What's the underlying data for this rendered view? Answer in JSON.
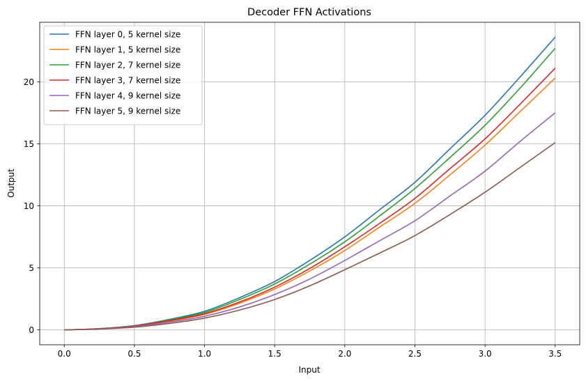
{
  "chart_data": {
    "type": "line",
    "title": "Decoder FFN Activations",
    "xlabel": "Input",
    "ylabel": "Output",
    "xlim": [
      -0.175,
      3.675
    ],
    "ylim": [
      -1.2,
      24.8
    ],
    "xticks": [
      0.0,
      0.5,
      1.0,
      1.5,
      2.0,
      2.5,
      3.0,
      3.5
    ],
    "xtick_labels": [
      "0.0",
      "0.5",
      "1.0",
      "1.5",
      "2.0",
      "2.5",
      "3.0",
      "3.5"
    ],
    "yticks": [
      0,
      5,
      10,
      15,
      20
    ],
    "ytick_labels": [
      "0",
      "5",
      "10",
      "15",
      "20"
    ],
    "grid": true,
    "legend_position": "upper-left",
    "x": [
      0.0,
      0.25,
      0.5,
      0.75,
      1.0,
      1.25,
      1.5,
      1.75,
      2.0,
      2.25,
      2.5,
      2.75,
      3.0,
      3.25,
      3.5
    ],
    "series": [
      {
        "name": "FFN layer 0, 5 kernel size",
        "color": "#1f77b4",
        "values": [
          0.0,
          0.1,
          0.35,
          0.85,
          1.5,
          2.6,
          3.9,
          5.6,
          7.5,
          9.7,
          11.9,
          14.6,
          17.3,
          20.4,
          23.6
        ]
      },
      {
        "name": "FFN layer 1, 5 kernel size",
        "color": "#ff7f0e",
        "values": [
          0.0,
          0.09,
          0.3,
          0.7,
          1.25,
          2.15,
          3.3,
          4.75,
          6.4,
          8.3,
          10.2,
          12.5,
          14.9,
          17.6,
          20.3
        ]
      },
      {
        "name": "FFN layer 2, 7 kernel size",
        "color": "#2ca02c",
        "values": [
          0.0,
          0.1,
          0.34,
          0.8,
          1.4,
          2.45,
          3.7,
          5.3,
          7.1,
          9.2,
          11.4,
          13.9,
          16.5,
          19.5,
          22.7
        ]
      },
      {
        "name": "FFN layer 3, 7 kernel size",
        "color": "#d62728",
        "values": [
          0.0,
          0.09,
          0.32,
          0.75,
          1.3,
          2.25,
          3.45,
          4.95,
          6.7,
          8.6,
          10.6,
          13.0,
          15.4,
          18.2,
          21.1
        ]
      },
      {
        "name": "FFN layer 4, 9 kernel size",
        "color": "#9467bd",
        "values": [
          0.0,
          0.08,
          0.27,
          0.62,
          1.1,
          1.85,
          2.85,
          4.1,
          5.6,
          7.2,
          8.8,
          10.8,
          12.8,
          15.2,
          17.5
        ]
      },
      {
        "name": "FFN layer 5, 9 kernel size",
        "color": "#8c564b",
        "values": [
          0.0,
          0.07,
          0.22,
          0.52,
          0.95,
          1.6,
          2.45,
          3.55,
          4.85,
          6.2,
          7.6,
          9.3,
          11.1,
          13.1,
          15.1
        ]
      }
    ]
  }
}
